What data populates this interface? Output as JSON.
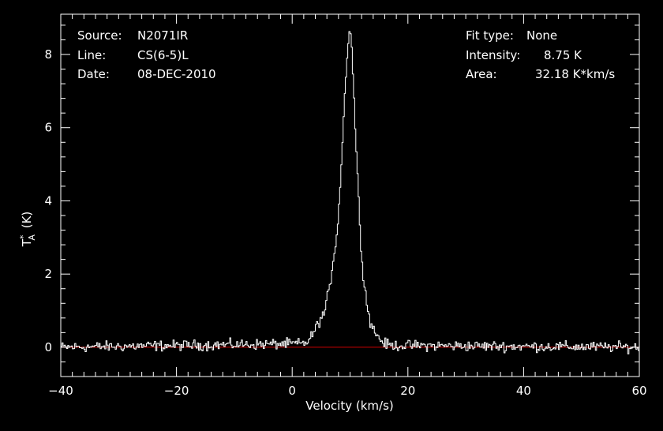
{
  "info_left": {
    "source_label": "Source:",
    "source_value": "N2071IR",
    "line_label": "Line:",
    "line_value": "CS(6-5)L",
    "date_label": "Date:",
    "date_value": "08-DEC-2010"
  },
  "info_right": {
    "fit_label": "Fit type:",
    "fit_value": "None",
    "intensity_label": "Intensity:",
    "intensity_value": "8.75 K",
    "area_label": "Area:",
    "area_value": "32.18 K*km/s"
  },
  "chart_data": {
    "type": "line",
    "xlabel": "Velocity (km/s)",
    "ylabel": "T_A^* (K)",
    "xlim": [
      -40,
      60
    ],
    "ylim": [
      -0.8,
      9.1
    ],
    "xticks": [
      -40,
      -20,
      0,
      20,
      40,
      60
    ],
    "yticks": [
      0,
      2,
      4,
      6,
      8
    ],
    "baseline": 0,
    "colors": {
      "spectrum": "#ffffff",
      "baseline": "#cc0000",
      "axes": "#ffffff",
      "background": "#000000"
    },
    "series": [
      {
        "x": [
          -40,
          2,
          3,
          4,
          5,
          5.5,
          6,
          6.5,
          7,
          7.5,
          8,
          8.5,
          9,
          9.5,
          9.8,
          10,
          10.3,
          10.6,
          11,
          11.5,
          12,
          12.5,
          13,
          13.5,
          14,
          15,
          16,
          17,
          60
        ],
        "values": [
          0,
          0.1,
          0.2,
          0.5,
          0.8,
          0.9,
          1.3,
          1.6,
          2.3,
          2.8,
          3.6,
          5.0,
          6.6,
          7.9,
          8.5,
          8.75,
          8.2,
          7.1,
          5.7,
          4.0,
          2.5,
          1.7,
          1.1,
          0.7,
          0.5,
          0.25,
          0.1,
          0.05,
          0
        ]
      }
    ]
  }
}
